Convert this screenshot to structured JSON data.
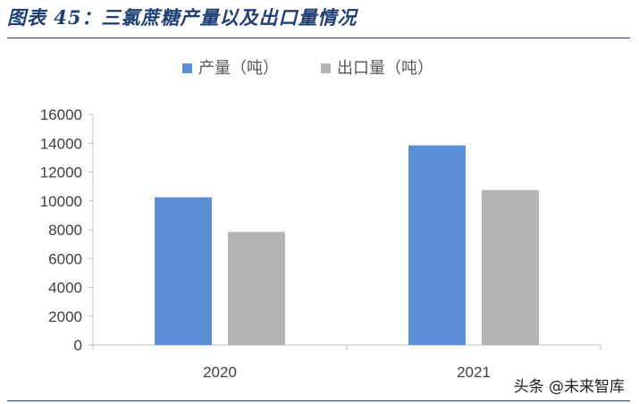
{
  "figure": {
    "title": "图表 45：三氯蔗糖产量以及出口量情况",
    "watermark": "头条 @未来智库"
  },
  "colors": {
    "production": "#5b8fd6",
    "export": "#b4b4b4",
    "axis": "#bfbfbf",
    "title": "#1f3f73"
  },
  "chart_data": {
    "type": "bar",
    "categories": [
      "2020",
      "2021"
    ],
    "series": [
      {
        "name": "产量（吨）",
        "values": [
          10250,
          13850
        ]
      },
      {
        "name": "出口量（吨）",
        "values": [
          7850,
          10750
        ]
      }
    ],
    "title": "",
    "xlabel": "",
    "ylabel": "",
    "ylim": [
      0,
      16000
    ],
    "yticks": [
      0,
      2000,
      4000,
      6000,
      8000,
      10000,
      12000,
      14000,
      16000
    ],
    "grid": false,
    "legend_position": "top-center"
  }
}
